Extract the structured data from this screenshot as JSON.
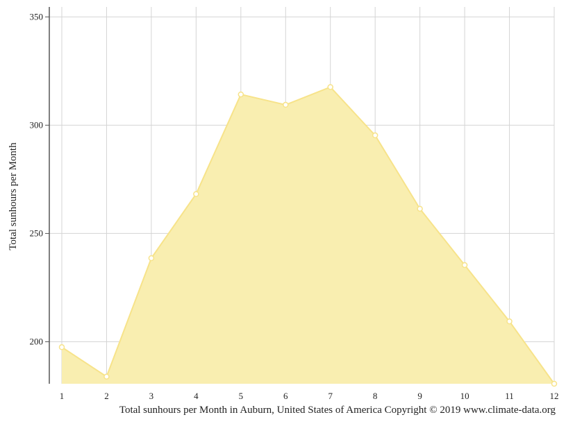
{
  "chart_data": {
    "type": "area",
    "x": [
      1,
      2,
      3,
      4,
      5,
      6,
      7,
      8,
      9,
      10,
      11,
      12
    ],
    "series": [
      {
        "values": [
          197.5,
          183.9,
          238.6,
          268.2,
          314.2,
          309.4,
          317.6,
          295.3,
          261.4,
          235.4,
          209.4,
          180.6
        ]
      }
    ],
    "xlabel": "",
    "ylabel": "Total sunhours per Month",
    "ylim": [
      180.6,
      354.6
    ],
    "yticks": [
      200,
      250,
      300,
      350
    ],
    "grid": true,
    "colors": {
      "fill": "#f9eeb0",
      "line": "#f7e38a",
      "grid": "#d4d4d4",
      "axis": "#555555"
    }
  },
  "caption": "Total sunhours per Month in Auburn, United States of America Copyright © 2019 www.climate-data.org"
}
